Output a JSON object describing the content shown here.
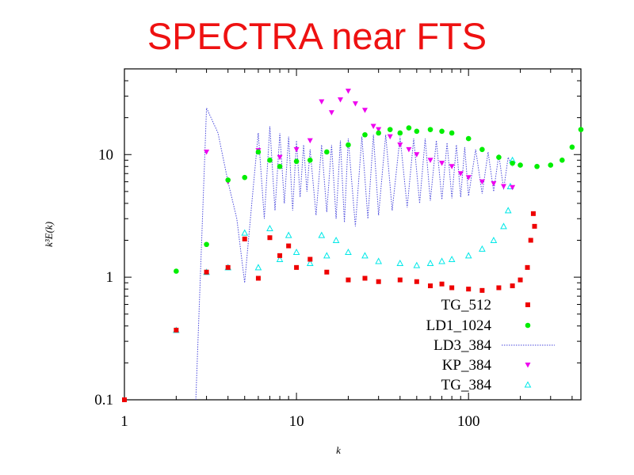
{
  "slide": {
    "title": "SPECTRA near FTS"
  },
  "chart_data": {
    "type": "scatter",
    "title": "",
    "xlabel": "k",
    "ylabel": "k³E(k)",
    "x_scale": "log",
    "y_scale": "log",
    "xlim": [
      1,
      450
    ],
    "ylim": [
      0.1,
      50
    ],
    "x_ticks": [
      1,
      10,
      100
    ],
    "x_tick_labels": [
      "1",
      "10",
      "100"
    ],
    "y_ticks": [
      0.1,
      1,
      10
    ],
    "y_tick_labels": [
      "0.1",
      "1",
      "10"
    ],
    "grid": false,
    "legend_position": "bottom-right",
    "series": [
      {
        "name": "TG_512",
        "marker": "square",
        "color": "#ee0000",
        "x": [
          1,
          2,
          3,
          4,
          5,
          6,
          7,
          8,
          9,
          10,
          12,
          15,
          20,
          25,
          30,
          40,
          50,
          60,
          70,
          80,
          100,
          120,
          150,
          180,
          200,
          220,
          230,
          238,
          242
        ],
        "y": [
          0.1,
          0.37,
          1.1,
          1.2,
          2.05,
          0.98,
          2.1,
          1.5,
          1.8,
          1.2,
          1.4,
          1.1,
          0.95,
          0.98,
          0.92,
          0.95,
          0.92,
          0.85,
          0.88,
          0.82,
          0.8,
          0.78,
          0.82,
          0.85,
          0.95,
          1.2,
          2.0,
          3.3,
          2.6
        ]
      },
      {
        "name": "LD1_1024",
        "marker": "circle",
        "color": "#00ee00",
        "x": [
          2,
          3,
          4,
          5,
          6,
          7,
          8,
          10,
          12,
          15,
          20,
          25,
          30,
          35,
          40,
          45,
          50,
          60,
          70,
          80,
          100,
          120,
          150,
          180,
          200,
          250,
          300,
          350,
          400,
          450
        ],
        "y": [
          1.12,
          1.85,
          6.2,
          6.5,
          10.5,
          9.0,
          8.0,
          8.8,
          9.0,
          10.5,
          12.0,
          14.5,
          15.0,
          16.0,
          15.0,
          16.5,
          15.5,
          16.0,
          15.5,
          15.0,
          13.5,
          11.0,
          9.5,
          8.5,
          8.2,
          8.0,
          8.2,
          9.0,
          11.5,
          16.0
        ]
      },
      {
        "name": "LD3_384",
        "style": "dotted-line",
        "color": "#4a4adc",
        "x": [
          2.6,
          3,
          3.5,
          4,
          4.5,
          5,
          5.5,
          6,
          6.5,
          7,
          7.5,
          8,
          8.5,
          9,
          9.5,
          10,
          10.5,
          11,
          11.5,
          12,
          13,
          14,
          15,
          16,
          17,
          18,
          19,
          20,
          22,
          24,
          26,
          28,
          30,
          33,
          36,
          40,
          44,
          48,
          52,
          56,
          60,
          65,
          70,
          75,
          80,
          85,
          90,
          95,
          100,
          110,
          120,
          130,
          140,
          150,
          160,
          170,
          180
        ],
        "y": [
          0.1,
          24,
          15,
          6,
          3,
          0.9,
          4,
          15,
          3,
          17,
          3.5,
          15,
          4,
          14,
          3.5,
          13,
          4.5,
          12,
          5,
          11,
          3.2,
          12,
          3.4,
          12,
          3.0,
          13,
          2.8,
          13.5,
          2.6,
          14,
          3.0,
          14.5,
          3.2,
          14.5,
          3.5,
          14,
          3.7,
          13.5,
          4.0,
          13.5,
          4.2,
          13,
          4.3,
          12.5,
          4.4,
          12,
          4.5,
          11.5,
          4.6,
          11,
          4.8,
          10.5,
          5.0,
          10,
          5.2,
          9.5,
          8.0
        ]
      },
      {
        "name": "KP_384",
        "marker": "triangle-down",
        "color": "#ee00ee",
        "x": [
          3,
          4,
          6,
          8,
          10,
          12,
          14,
          16,
          18,
          20,
          22,
          25,
          28,
          30,
          35,
          40,
          45,
          50,
          60,
          70,
          80,
          90,
          100,
          120,
          140,
          160,
          180
        ],
        "y": [
          10.5,
          6.0,
          10.8,
          9.5,
          11.0,
          13.0,
          27.0,
          22.0,
          28.0,
          33.0,
          26.0,
          23.0,
          17.0,
          16.0,
          14.0,
          12.0,
          11.0,
          10.0,
          9.0,
          8.5,
          8.0,
          7.0,
          6.5,
          6.0,
          5.8,
          5.5,
          5.4
        ]
      },
      {
        "name": "TG_384",
        "marker": "triangle-up",
        "color": "#00e8e8",
        "x": [
          2,
          3,
          4,
          5,
          6,
          7,
          8,
          9,
          10,
          12,
          14,
          15,
          17,
          20,
          25,
          30,
          40,
          50,
          60,
          70,
          80,
          100,
          120,
          140,
          160,
          170,
          175,
          180
        ],
        "y": [
          0.37,
          1.1,
          1.2,
          2.3,
          1.2,
          2.5,
          1.4,
          2.2,
          1.6,
          1.3,
          2.2,
          1.5,
          2.0,
          1.6,
          1.5,
          1.35,
          1.3,
          1.25,
          1.3,
          1.35,
          1.4,
          1.5,
          1.7,
          2.0,
          2.6,
          3.5,
          5.5,
          9.0
        ]
      }
    ]
  }
}
